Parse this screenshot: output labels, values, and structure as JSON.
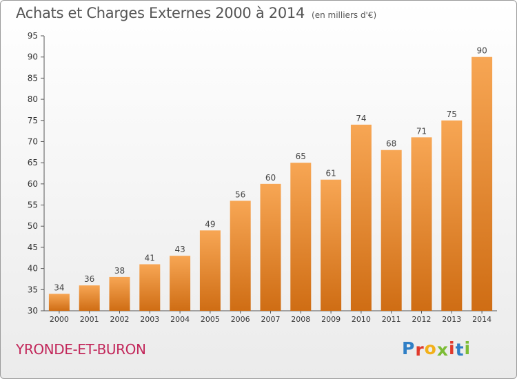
{
  "chart_data": {
    "type": "bar",
    "title": "Achats et Charges Externes 2000 à 2014",
    "subtitle": "(en milliers d'€)",
    "xlabel": "",
    "ylabel": "",
    "categories": [
      "2000",
      "2001",
      "2002",
      "2003",
      "2004",
      "2005",
      "2006",
      "2007",
      "2008",
      "2009",
      "2010",
      "2011",
      "2012",
      "2013",
      "2014"
    ],
    "values": [
      34,
      36,
      38,
      41,
      43,
      49,
      56,
      60,
      65,
      61,
      74,
      68,
      71,
      75,
      90
    ],
    "ylim": [
      30,
      95
    ],
    "yticks": [
      30,
      35,
      40,
      45,
      50,
      55,
      60,
      65,
      70,
      75,
      80,
      85,
      90,
      95
    ],
    "grid": false,
    "legend": "none",
    "bar_color_top": "#f7a654",
    "bar_color_bottom": "#cf6d14"
  },
  "footer": {
    "commune": "YRONDE-ET-BURON",
    "logo_letters": [
      "P",
      "r",
      "o",
      "x",
      "i",
      "t",
      "i"
    ],
    "logo_colors": [
      "#2f7fc6",
      "#e03a2c",
      "#f2b01a",
      "#7cbc35",
      "#e03a2c",
      "#2f7fc6",
      "#7cbc35"
    ]
  }
}
